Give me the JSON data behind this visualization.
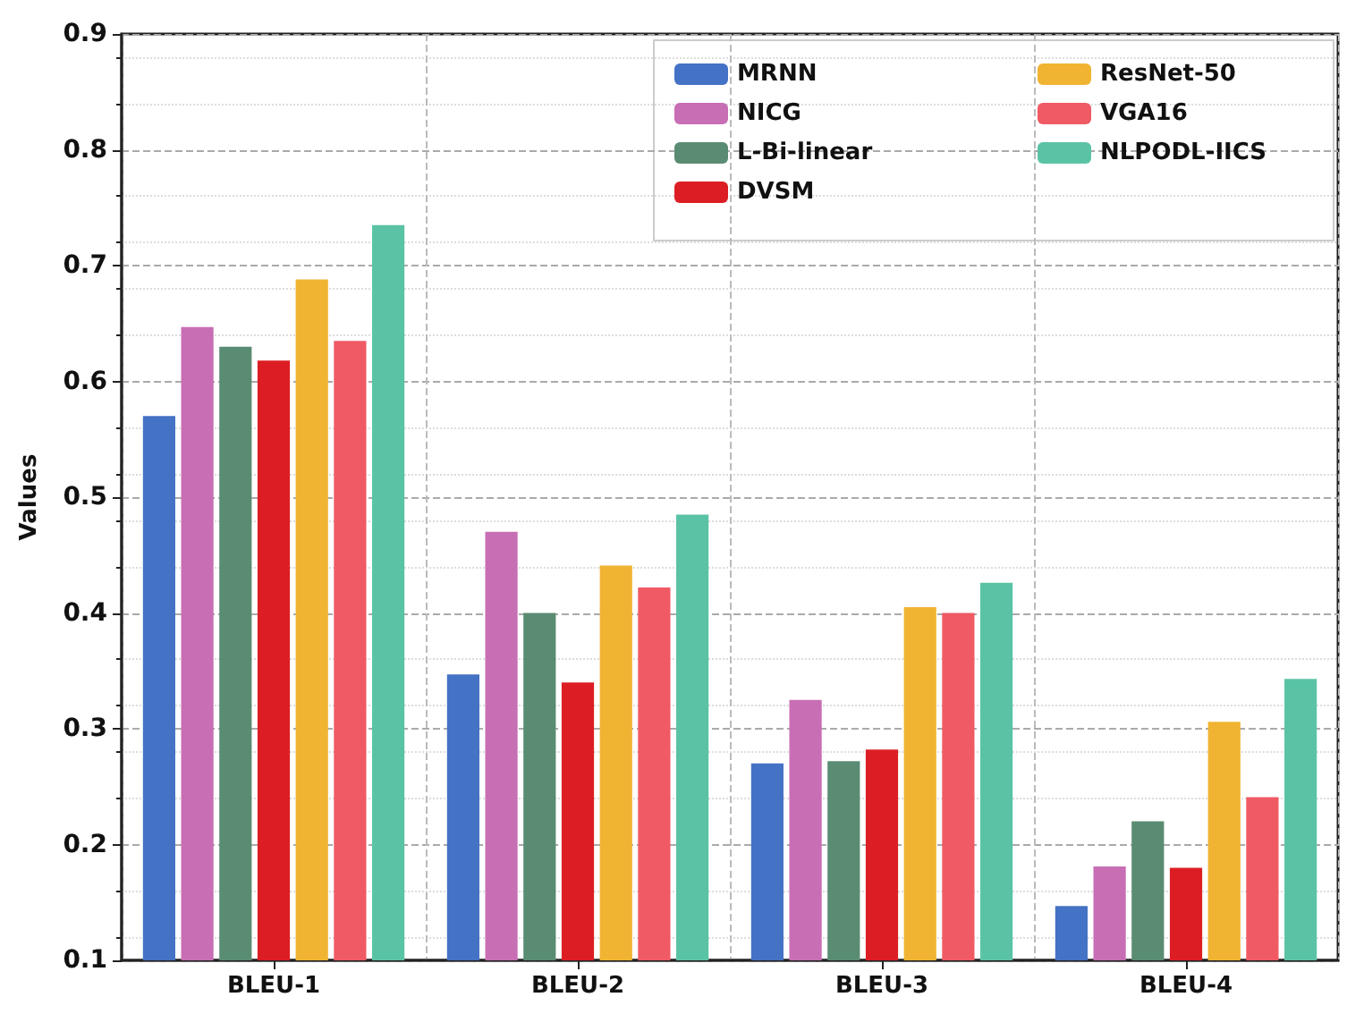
{
  "chart_data": {
    "type": "bar",
    "ylabel": "Values",
    "categories": [
      "BLEU-1",
      "BLEU-2",
      "BLEU-3",
      "BLEU-4"
    ],
    "series": [
      {
        "name": "MRNN",
        "color": "#4472c4",
        "values": [
          0.57,
          0.347,
          0.27,
          0.147
        ]
      },
      {
        "name": "NICG",
        "color": "#c86eb4",
        "values": [
          0.647,
          0.47,
          0.325,
          0.181
        ]
      },
      {
        "name": "L-Bi-linear",
        "color": "#5a8c73",
        "values": [
          0.63,
          0.4,
          0.272,
          0.22
        ]
      },
      {
        "name": "DVSM",
        "color": "#dc1e24",
        "values": [
          0.618,
          0.34,
          0.282,
          0.18
        ]
      },
      {
        "name": "ResNet-50",
        "color": "#f0b432",
        "values": [
          0.688,
          0.441,
          0.405,
          0.306
        ]
      },
      {
        "name": "VGA16",
        "color": "#f05a64",
        "values": [
          0.635,
          0.422,
          0.4,
          0.241
        ]
      },
      {
        "name": "NLPODL-IICS",
        "color": "#5ac3a5",
        "values": [
          0.735,
          0.485,
          0.426,
          0.343
        ]
      }
    ],
    "ylim": [
      0.1,
      0.9
    ],
    "yticks": [
      0.1,
      0.2,
      0.3,
      0.4,
      0.5,
      0.6,
      0.7,
      0.8,
      0.9
    ],
    "grid": true,
    "legend": "top right"
  }
}
